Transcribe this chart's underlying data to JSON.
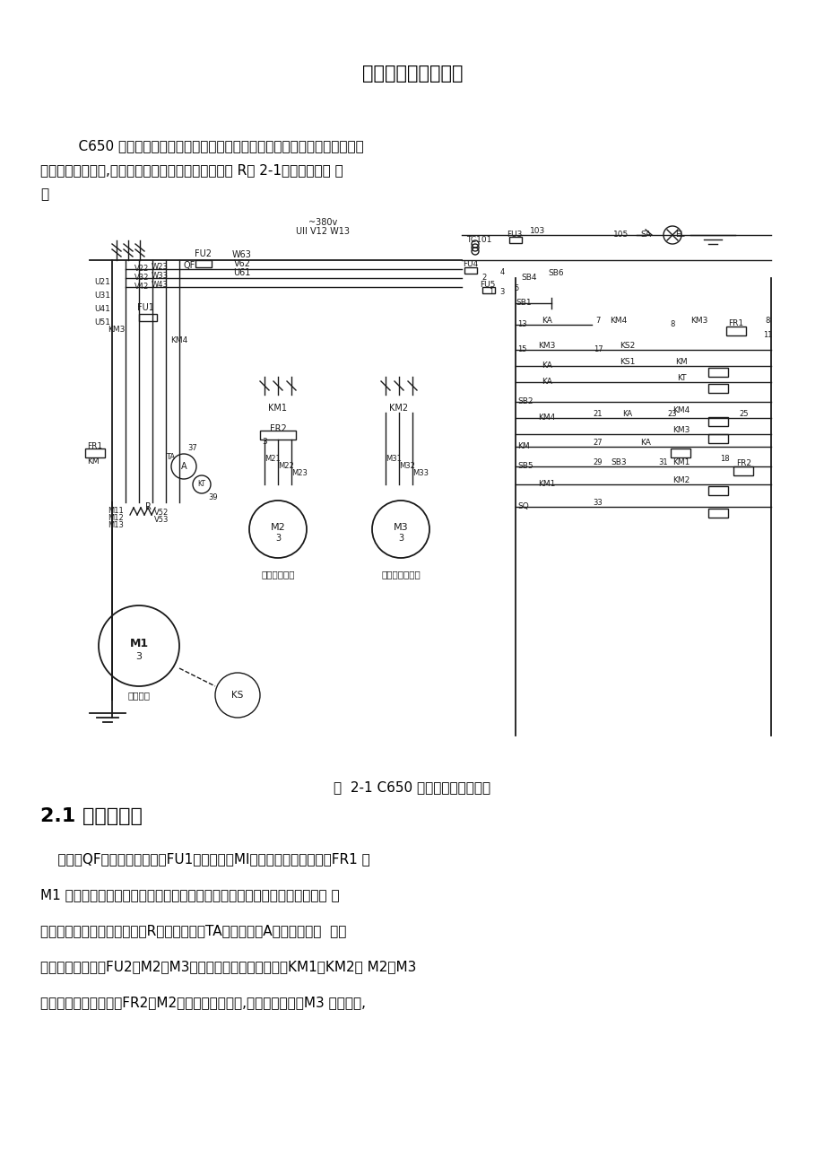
{
  "title": "第二章电气控制原理",
  "intro_line1": "    C650 卧式车床属于中型车床，为提高工作效率，该机床采用了反接制动。",
  "intro_line2": "为了减少制动电流,制动时在定子回路串入了限流电阮 R图 2-1是它的电气原 理",
  "intro_line3": "图",
  "figure_caption": "图  2-1 C650 卧式车床电气原理图",
  "section_title": "2.1 主电路设计",
  "body_line1": "    断路器QF将三相电源引入，FU1为主电动机MI的短路保护用熔断器，FR1 为",
  "body_line2": "M1 电动机过载保护用热继电器。为防止在连续点动时的启动电流造成电动机 的",
  "body_line3": "过载，点动时也加入限流电阮R。通过互感器TA接入电流表A以监视主电动  机绕",
  "body_line4": "组的电流。熔断器FU2为M2、M3电动机的短路保护，接触器KM1、KM2为 M2、M3",
  "body_line5": "电动机启动用接触器。FR2为M2电动机的过载保护,因为快速电动机M3 短时工作,",
  "bg_color": "#ffffff",
  "text_color": "#000000"
}
